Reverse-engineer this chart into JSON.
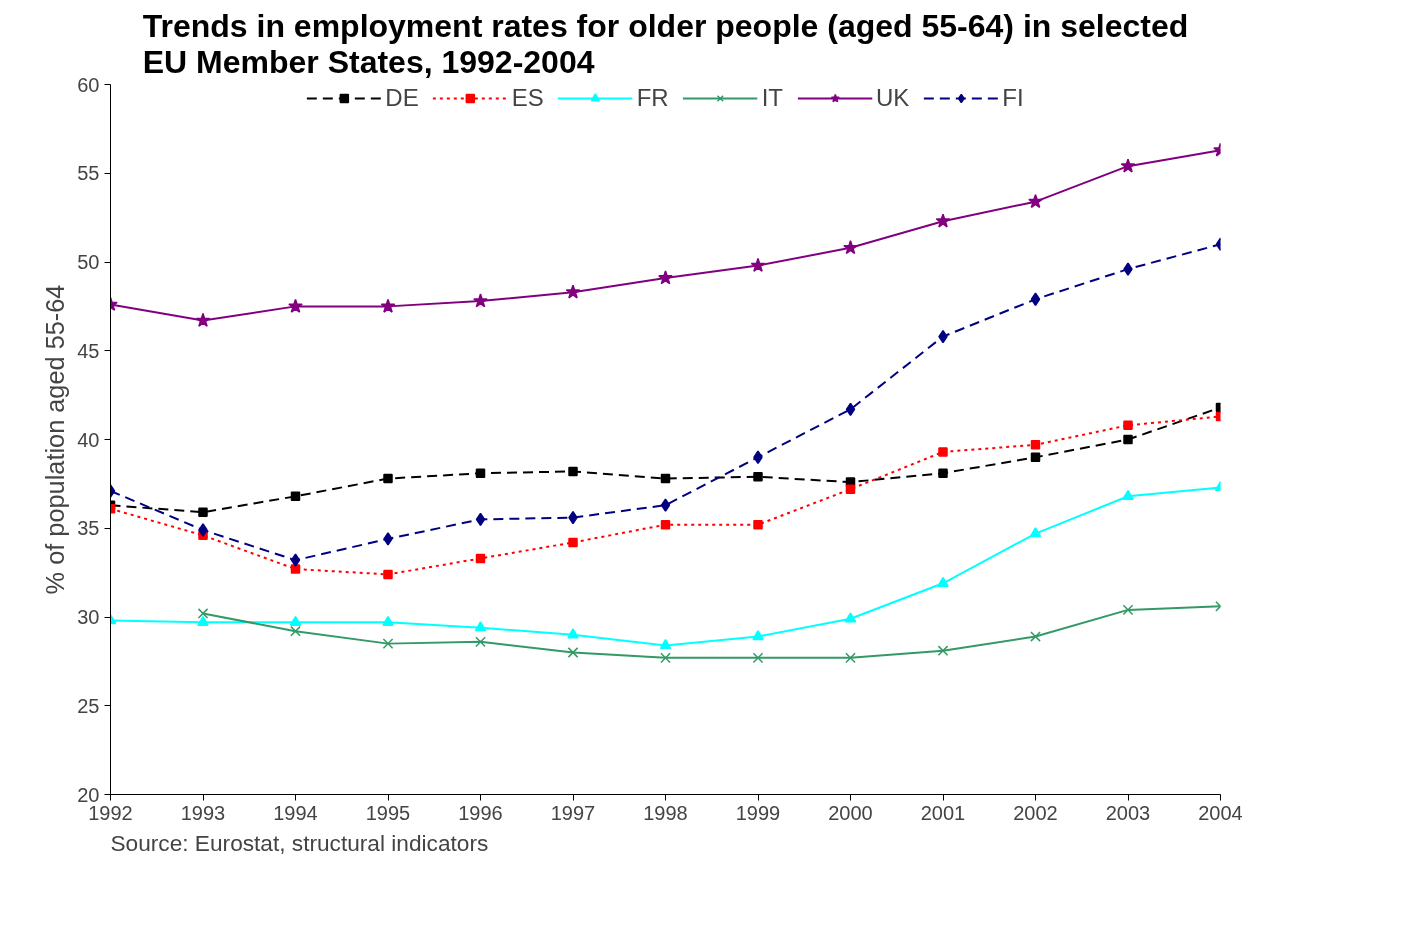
{
  "chart_data": {
    "type": "line",
    "title": "Trends in employment rates for older people (aged 55-64) in selected\nEU Member States, 1992-2004",
    "ylabel": "% of population aged 55-64",
    "x": [
      1992,
      1993,
      1994,
      1995,
      1996,
      1997,
      1998,
      1999,
      2000,
      2001,
      2002,
      2003,
      2004
    ],
    "xlim": [
      1992,
      2004
    ],
    "xticks": [
      1992,
      1993,
      1994,
      1995,
      1996,
      1997,
      1998,
      1999,
      2000,
      2001,
      2002,
      2003,
      2004
    ],
    "ylim": [
      20,
      60
    ],
    "yticks": [
      20,
      25,
      30,
      35,
      40,
      45,
      50,
      55,
      60
    ],
    "grid": false,
    "legend": "top",
    "series": [
      {
        "name": "DE",
        "color": "#000000",
        "marker": "square",
        "line_style": "dashed",
        "values": [
          36.3,
          35.9,
          36.8,
          37.8,
          38.1,
          38.2,
          37.8,
          37.9,
          37.6,
          38.1,
          39.0,
          40.0,
          41.8
        ]
      },
      {
        "name": "ES",
        "color": "#ff0000",
        "marker": "square",
        "line_style": "dotted",
        "values": [
          36.1,
          34.6,
          32.7,
          32.4,
          33.3,
          34.2,
          35.2,
          35.2,
          37.2,
          39.3,
          39.7,
          40.8,
          41.3
        ]
      },
      {
        "name": "FR",
        "color": "#00ffff",
        "marker": "triangle",
        "line_style": "solid",
        "values": [
          29.8,
          29.7,
          29.7,
          29.7,
          29.4,
          29.0,
          28.4,
          28.9,
          29.9,
          31.9,
          34.7,
          36.8,
          37.3
        ]
      },
      {
        "name": "IT",
        "color": "#339966",
        "marker": "cross",
        "line_style": "solid",
        "values": [
          null,
          30.2,
          29.2,
          28.5,
          28.6,
          28.0,
          27.7,
          27.7,
          27.7,
          28.1,
          28.9,
          30.4,
          30.6
        ]
      },
      {
        "name": "UK",
        "color": "#800080",
        "marker": "star",
        "line_style": "solid",
        "values": [
          47.6,
          46.7,
          47.5,
          47.5,
          47.8,
          48.3,
          49.1,
          49.8,
          50.8,
          52.3,
          53.4,
          55.4,
          56.3
        ]
      },
      {
        "name": "FI",
        "color": "#000080",
        "marker": "diamond",
        "line_style": "dashed",
        "values": [
          37.1,
          34.9,
          33.2,
          34.4,
          35.5,
          35.6,
          36.3,
          39.0,
          41.7,
          45.8,
          47.9,
          49.6,
          51.0
        ]
      }
    ],
    "annotations": [
      "Source: Eurostat, structural indicators"
    ]
  }
}
